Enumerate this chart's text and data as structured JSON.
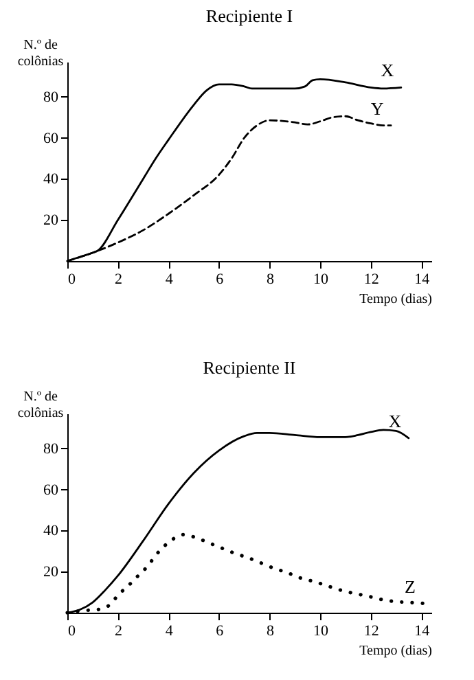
{
  "chart_data": [
    {
      "type": "line",
      "title": "Recipiente I",
      "xlabel": "Tempo (dias)",
      "ylabel": "N.º de colônias",
      "xlim": [
        0,
        14.4
      ],
      "ylim": [
        0,
        97
      ],
      "xticks": [
        0,
        2,
        4,
        6,
        8,
        10,
        12,
        14
      ],
      "yticks": [
        20,
        40,
        60,
        80
      ],
      "grid": false,
      "marker": "none",
      "series": [
        {
          "name": "X",
          "color": "#000000",
          "line_style": "solid",
          "x": [
            0,
            0.5,
            1,
            1.2,
            2,
            3,
            3.5,
            4,
            5,
            5.5,
            6,
            6.5,
            7,
            7.3,
            8,
            9,
            9.4,
            9.7,
            10,
            11,
            12,
            12.5,
            13.2
          ],
          "values": [
            0,
            2,
            4,
            5,
            20,
            40,
            50,
            59,
            76,
            83,
            86,
            86,
            85,
            84,
            84,
            84,
            85,
            88,
            88.5,
            87,
            84.5,
            84,
            84.5
          ]
        },
        {
          "name": "Y",
          "color": "#000000",
          "line_style": "dashed",
          "x": [
            0,
            1,
            2,
            3,
            4,
            5,
            6,
            6.5,
            7,
            7.5,
            8,
            9,
            9.5,
            10,
            10.5,
            11,
            11.5,
            12,
            12.5,
            12.8
          ],
          "values": [
            0,
            4,
            9,
            15,
            23,
            32,
            42,
            50,
            60,
            66,
            68.5,
            67.5,
            66.5,
            68,
            70,
            70.5,
            68.5,
            67,
            66,
            66
          ]
        }
      ]
    },
    {
      "type": "line",
      "title": "Recipiente II",
      "xlabel": "Tempo (dias)",
      "ylabel": "N.º de colônias",
      "xlim": [
        0,
        14.4
      ],
      "ylim": [
        0,
        97
      ],
      "xticks": [
        0,
        2,
        4,
        6,
        8,
        10,
        12,
        14
      ],
      "yticks": [
        20,
        40,
        60,
        80
      ],
      "grid": false,
      "marker": "none",
      "series": [
        {
          "name": "X",
          "color": "#000000",
          "line_style": "solid",
          "x": [
            0,
            0.5,
            1,
            1.5,
            2,
            3,
            4,
            5,
            6,
            7,
            7.5,
            8,
            9,
            10,
            11,
            11.5,
            12,
            12.5,
            13,
            13.5
          ],
          "values": [
            0,
            1.5,
            5,
            11,
            18,
            35,
            53,
            68,
            79,
            86,
            87.5,
            87.5,
            86.5,
            85.5,
            85.5,
            86.5,
            88,
            89,
            88.5,
            85
          ]
        },
        {
          "name": "Z",
          "color": "#000000",
          "line_style": "dotted",
          "x": [
            0,
            0.6,
            1.2,
            1.7,
            2,
            2.4,
            2.8,
            3.2,
            3.5,
            3.8,
            4.2,
            4.6,
            5.1,
            5.6,
            6.1,
            6.6,
            7.2,
            7.7,
            8.2,
            8.7,
            9.2,
            9.8,
            10.3,
            10.8,
            11.3,
            11.9,
            12.4,
            12.9,
            13.5,
            14.1
          ],
          "values": [
            0,
            1,
            1.5,
            4,
            8.5,
            13,
            18,
            23,
            28,
            32,
            36,
            38,
            36.5,
            34,
            31.5,
            29,
            26.5,
            24,
            21.5,
            19.5,
            17,
            15,
            13,
            11,
            9.5,
            8,
            6.5,
            5.5,
            5,
            4.5
          ]
        }
      ]
    }
  ]
}
